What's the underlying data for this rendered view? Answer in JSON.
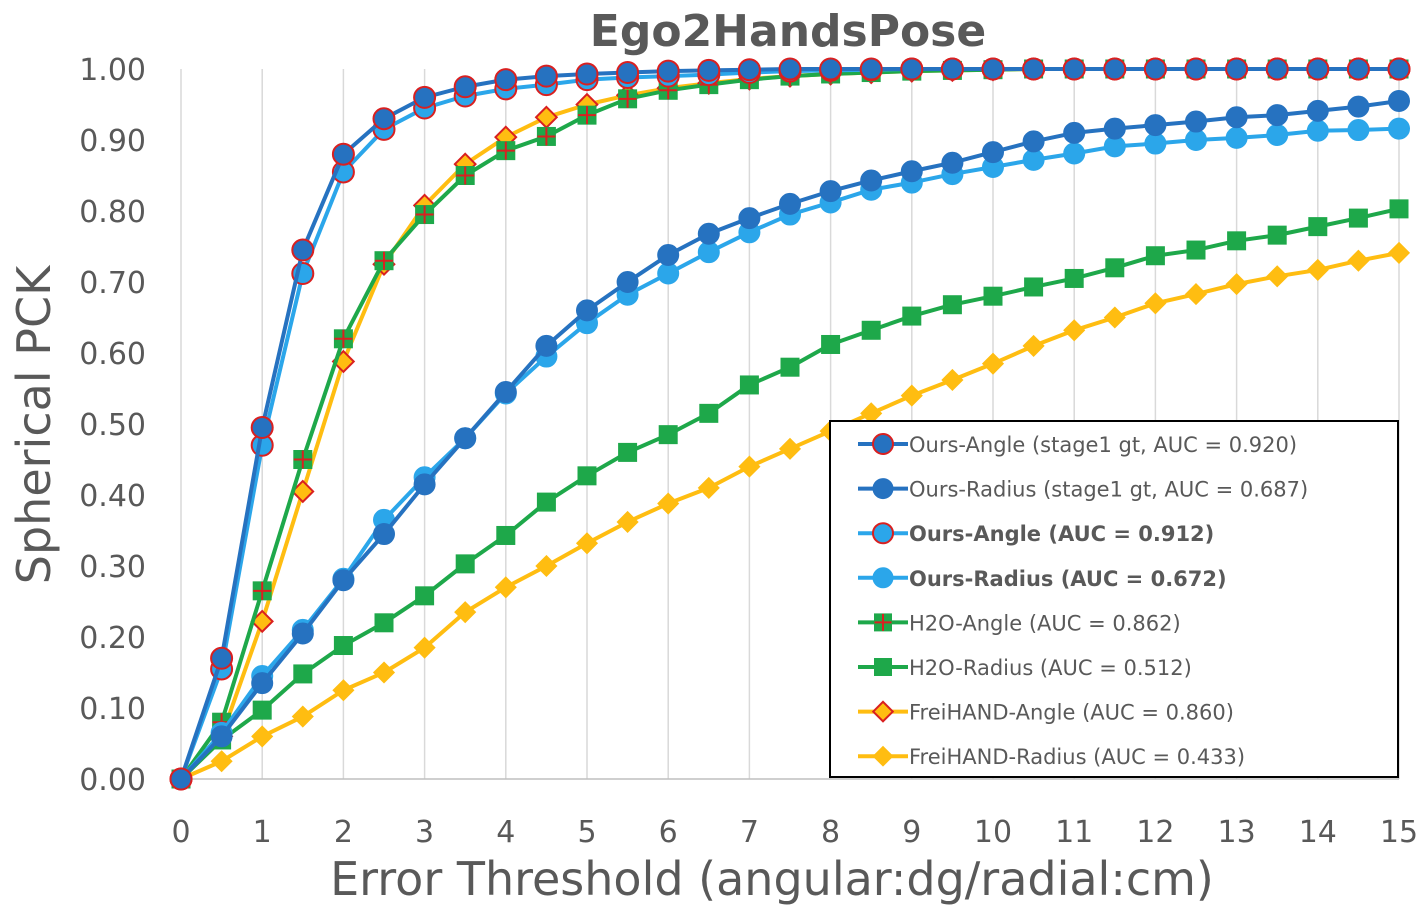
{
  "chart_data": {
    "type": "line",
    "title": "Ego2HandsPose",
    "xlabel": "Error Threshold (angular:dg/radial:cm)",
    "ylabel": "Spherical PCK",
    "xlim": [
      0,
      15
    ],
    "ylim": [
      0,
      1
    ],
    "x_ticks": [
      "0",
      "1",
      "2",
      "3",
      "4",
      "5",
      "6",
      "7",
      "8",
      "9",
      "10",
      "11",
      "12",
      "13",
      "14",
      "15"
    ],
    "y_ticks": [
      "0.00",
      "0.10",
      "0.20",
      "0.30",
      "0.40",
      "0.50",
      "0.60",
      "0.70",
      "0.80",
      "0.90",
      "1.00"
    ],
    "grid": "vertical",
    "legend_position": "bottom-right",
    "x": [
      0,
      0.5,
      1,
      1.5,
      2,
      2.5,
      3,
      3.5,
      4,
      4.5,
      5,
      5.5,
      6,
      6.5,
      7,
      7.5,
      8,
      8.5,
      9,
      9.5,
      10,
      10.5,
      11,
      11.5,
      12,
      12.5,
      13,
      13.5,
      14,
      14.5,
      15
    ],
    "series": [
      {
        "name": "Ours-Angle (stage1 gt, AUC = 0.920)",
        "bold": false,
        "line": "#2672C0",
        "marker": "circle",
        "fill": "#2672C0",
        "stroke": "#D92020",
        "values": [
          0.0,
          0.17,
          0.495,
          0.745,
          0.88,
          0.93,
          0.96,
          0.975,
          0.985,
          0.99,
          0.993,
          0.995,
          0.997,
          0.998,
          0.999,
          1.0,
          1.0,
          1.0,
          1.0,
          1.0,
          1.0,
          1.0,
          1.0,
          1.0,
          1.0,
          1.0,
          1.0,
          1.0,
          1.0,
          1.0,
          1.0
        ]
      },
      {
        "name": "Ours-Radius (stage1 gt, AUC = 0.687)",
        "bold": false,
        "line": "#2672C0",
        "marker": "circle",
        "fill": "#2672C0",
        "stroke": "#2672C0",
        "values": [
          0.0,
          0.06,
          0.135,
          0.205,
          0.28,
          0.345,
          0.415,
          0.48,
          0.545,
          0.61,
          0.66,
          0.7,
          0.738,
          0.768,
          0.79,
          0.81,
          0.828,
          0.843,
          0.856,
          0.868,
          0.883,
          0.898,
          0.91,
          0.916,
          0.921,
          0.926,
          0.932,
          0.935,
          0.941,
          0.947,
          0.955
        ]
      },
      {
        "name": "Ours-Angle (AUC = 0.912)",
        "bold": true,
        "line": "#2BA6EA",
        "marker": "circle",
        "fill": "#2BA6EA",
        "stroke": "#D92020",
        "values": [
          0.0,
          0.155,
          0.47,
          0.712,
          0.855,
          0.915,
          0.945,
          0.962,
          0.972,
          0.978,
          0.985,
          0.988,
          0.99,
          0.992,
          0.995,
          0.997,
          0.998,
          0.999,
          1.0,
          1.0,
          1.0,
          1.0,
          1.0,
          1.0,
          1.0,
          1.0,
          1.0,
          1.0,
          1.0,
          1.0,
          1.0
        ]
      },
      {
        "name": "Ours-Radius (AUC = 0.672)",
        "bold": true,
        "line": "#2BA6EA",
        "marker": "circle",
        "fill": "#2BA6EA",
        "stroke": "#2BA6EA",
        "values": [
          0.0,
          0.065,
          0.145,
          0.21,
          0.282,
          0.365,
          0.425,
          0.48,
          0.543,
          0.595,
          0.642,
          0.682,
          0.712,
          0.742,
          0.77,
          0.795,
          0.812,
          0.83,
          0.84,
          0.852,
          0.862,
          0.872,
          0.881,
          0.891,
          0.895,
          0.9,
          0.903,
          0.907,
          0.913,
          0.914,
          0.916
        ]
      },
      {
        "name": "H2O-Angle (AUC = 0.862)",
        "bold": false,
        "line": "#1EA84A",
        "marker": "square-plus",
        "fill": "#1EA84A",
        "stroke": "#D92020",
        "values": [
          0.0,
          0.08,
          0.265,
          0.45,
          0.62,
          0.73,
          0.795,
          0.85,
          0.885,
          0.905,
          0.935,
          0.958,
          0.97,
          0.978,
          0.985,
          0.99,
          0.993,
          0.995,
          0.997,
          0.998,
          0.999,
          1.0,
          1.0,
          1.0,
          1.0,
          1.0,
          1.0,
          1.0,
          1.0,
          1.0,
          1.0
        ]
      },
      {
        "name": "H2O-Radius (AUC = 0.512)",
        "bold": false,
        "line": "#1EA84A",
        "marker": "square",
        "fill": "#1EA84A",
        "stroke": "#1EA84A",
        "values": [
          0.0,
          0.055,
          0.097,
          0.148,
          0.188,
          0.22,
          0.258,
          0.303,
          0.343,
          0.39,
          0.427,
          0.46,
          0.485,
          0.515,
          0.555,
          0.58,
          0.612,
          0.632,
          0.652,
          0.668,
          0.68,
          0.693,
          0.705,
          0.72,
          0.737,
          0.745,
          0.758,
          0.766,
          0.778,
          0.79,
          0.803
        ]
      },
      {
        "name": "FreiHAND-Angle (AUC = 0.860)",
        "bold": false,
        "line": "#FFBD11",
        "marker": "diamond",
        "fill": "#FFBD11",
        "stroke": "#D92020",
        "values": [
          0.0,
          0.06,
          0.222,
          0.405,
          0.588,
          0.725,
          0.808,
          0.866,
          0.904,
          0.932,
          0.95,
          0.963,
          0.973,
          0.98,
          0.986,
          0.99,
          0.993,
          0.995,
          0.997,
          0.998,
          0.999,
          1.0,
          1.0,
          1.0,
          1.0,
          1.0,
          1.0,
          1.0,
          1.0,
          1.0,
          1.0
        ]
      },
      {
        "name": "FreiHAND-Radius (AUC = 0.433)",
        "bold": false,
        "line": "#FFBD11",
        "marker": "diamond",
        "fill": "#FFBD11",
        "stroke": "#FFBD11",
        "values": [
          0.0,
          0.025,
          0.06,
          0.088,
          0.125,
          0.15,
          0.185,
          0.235,
          0.27,
          0.3,
          0.332,
          0.362,
          0.388,
          0.41,
          0.44,
          0.465,
          0.49,
          0.515,
          0.54,
          0.562,
          0.585,
          0.61,
          0.632,
          0.65,
          0.67,
          0.683,
          0.697,
          0.708,
          0.717,
          0.73,
          0.741
        ]
      }
    ]
  }
}
